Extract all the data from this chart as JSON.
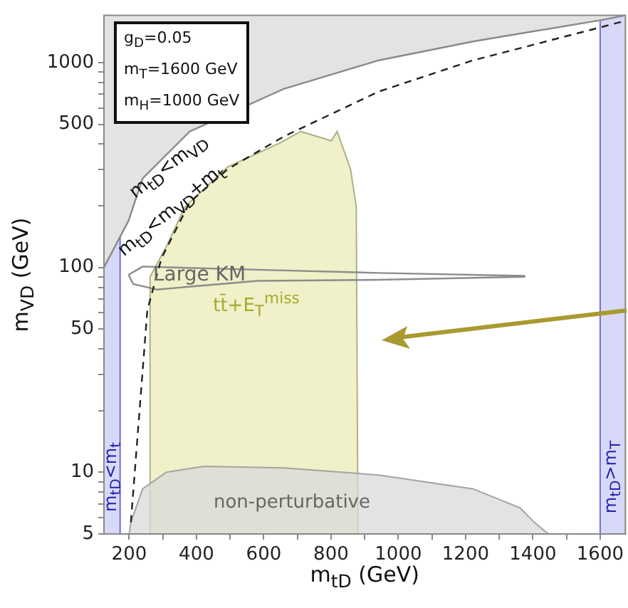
{
  "chart_data": {
    "type": "area",
    "xlabel": "m$_{tD}$ (GeV)",
    "ylabel": "m$_{VD}$ (GeV)",
    "log": "y",
    "xlim": [
      125,
      1675
    ],
    "ylim": [
      5,
      1700
    ],
    "xticks": [
      200,
      {
        "value": 300,
        "label": null
      },
      400,
      {
        "value": 500,
        "label": null
      },
      600,
      {
        "value": 700,
        "label": null
      },
      800,
      {
        "value": 900,
        "label": null
      },
      1000,
      {
        "value": 1100,
        "label": null
      },
      1200,
      {
        "value": 1300,
        "label": null
      },
      1400,
      {
        "value": 1500,
        "label": null
      },
      1600
    ],
    "yticks": [
      5,
      {
        "value": 6,
        "label": null
      },
      {
        "value": 7,
        "label": null
      },
      {
        "value": 8,
        "label": null
      },
      {
        "value": 9,
        "label": null
      },
      10,
      {
        "value": 20,
        "label": null
      },
      {
        "value": 30,
        "label": null
      },
      {
        "value": 40,
        "label": null
      },
      50,
      {
        "value": 60,
        "label": null
      },
      {
        "value": 70,
        "label": null
      },
      {
        "value": 80,
        "label": null
      },
      {
        "value": 90,
        "label": null
      },
      100,
      {
        "value": 200,
        "label": null
      },
      {
        "value": 300,
        "label": null
      },
      {
        "value": 400,
        "label": null
      },
      500,
      {
        "value": 600,
        "label": null
      },
      {
        "value": 700,
        "label": null
      },
      {
        "value": 800,
        "label": null
      },
      {
        "value": 900,
        "label": null
      },
      1000
    ],
    "series": [
      {
        "type": "line",
        "color": "#8a8a8a",
        "x": [
          125,
          198,
          240,
          380,
          661,
          942,
          1222,
          1601,
          1675
        ],
        "values": [
          100,
          169,
          272,
          461,
          746,
          1026,
          1268,
          1611,
          1700
        ],
        "lower": [
          100,
          169,
          272,
          461,
          746,
          1026,
          1268,
          1611,
          1700
        ],
        "upper": [
          1700,
          1700,
          1700,
          1700,
          1700,
          1700,
          1700,
          1700,
          1700
        ]
      },
      {
        "color": "#ebebb5",
        "x": [
          262,
          262,
          310,
          366,
          493,
          647,
          710,
          801,
          818,
          858,
          875,
          880
        ],
        "values": [
          5,
          90,
          126,
          198,
          310,
          404,
          461,
          415,
          461,
          302,
          198,
          5
        ]
      },
      {
        "color": "#d9d9d9",
        "x": [
          200,
          205,
          240,
          310,
          422,
          661,
          942,
          1222,
          1362,
          1404,
          1446
        ],
        "values": [
          5,
          5.7,
          8.3,
          10,
          10.7,
          10.5,
          9.7,
          8.3,
          6.7,
          5.7,
          5
        ]
      },
      {
        "type": "line",
        "color": "#8c8c8c",
        "x": [
          198,
          240,
          520,
          942,
          1377
        ],
        "values": [
          92,
          101,
          98,
          94,
          91
        ]
      },
      {
        "type": "line",
        "color": "#8c8c8c",
        "x": [
          198,
          212,
          282,
          581,
          942,
          1377
        ],
        "values": [
          92,
          83,
          78,
          86,
          87,
          90
        ]
      },
      {
        "type": "line",
        "color": "#222222",
        "line_style": "dashed",
        "x": [
          205,
          254,
          296,
          380,
          493,
          661,
          942,
          1222,
          1601,
          1675
        ],
        "values": [
          5.7,
          62,
          111,
          208,
          302,
          437,
          722,
          1026,
          1486,
          1600
        ]
      }
    ],
    "bands": [
      {
        "axis": "x",
        "from": 125,
        "to": 173,
        "label": "m$_{tD}$<m$_{t}$",
        "color": "#d8d8f8"
      },
      {
        "axis": "x",
        "from": 1600,
        "to": 1675,
        "label": "m$_{tD}$>m$_{T}$",
        "color": "#d8d8f8"
      }
    ],
    "ref_lines": [
      {
        "axis": "x",
        "value": 173,
        "color": "#7070dd"
      },
      {
        "axis": "x",
        "value": 1600,
        "color": "#7070dd"
      }
    ],
    "annotations": [
      {
        "text": "m$_{tD}$<m$_{VD}$",
        "x": 300,
        "y": 341
      },
      {
        "text": "m$_{tD}$<m$_{VD}$+m$_{t}$",
        "x": 350,
        "y": 166
      },
      "g$_{D}$=0.05",
      "m$_{T}$=1600 GeV",
      "m$_{H}$=1000 GeV",
      "Large KM",
      "tt̄+E$_{T}$$^{miss}$",
      "non-perturbative"
    ]
  }
}
